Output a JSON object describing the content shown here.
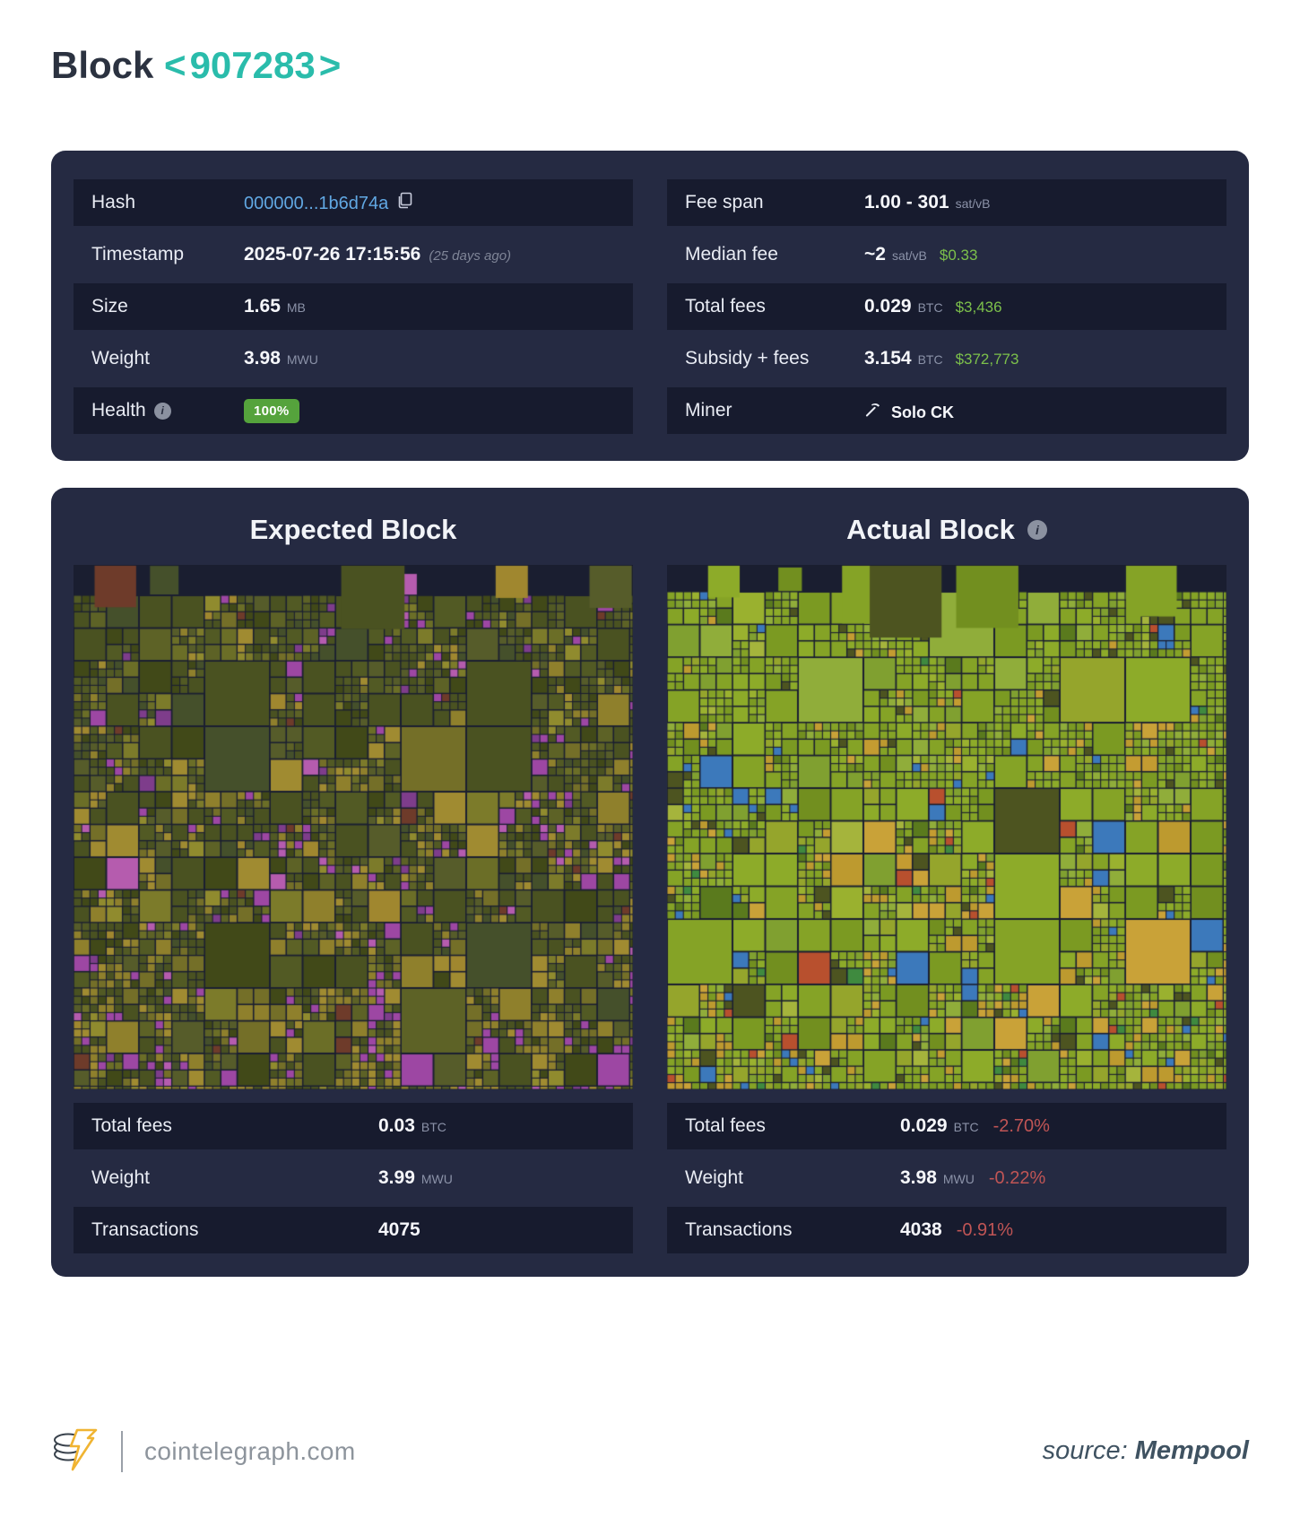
{
  "page": {
    "title": "Block",
    "prev_arrow": "<",
    "block_number": "907283",
    "next_arrow": ">"
  },
  "colors": {
    "accent_teal": "#2abcab",
    "card_background": "#252a42",
    "row_dark": "#171b2e",
    "hash_link": "#61a8e3",
    "usd_green": "#7cc04b",
    "delta_red": "#c05555",
    "badge_green": "#55a33c"
  },
  "summary": {
    "hash": {
      "label": "Hash",
      "value": "000000...1b6d74a"
    },
    "timestamp": {
      "label": "Timestamp",
      "value": "2025-07-26 17:15:56",
      "ago": "(25 days ago)"
    },
    "size": {
      "label": "Size",
      "value": "1.65",
      "unit": "MB"
    },
    "weight": {
      "label": "Weight",
      "value": "3.98",
      "unit": "MWU"
    },
    "health": {
      "label": "Health",
      "badge": "100%"
    },
    "fee_span": {
      "label": "Fee span",
      "value": "1.00 - 301",
      "unit": "sat/vB"
    },
    "median_fee": {
      "label": "Median fee",
      "value": "~2",
      "unit": "sat/vB",
      "usd": "$0.33"
    },
    "total_fees": {
      "label": "Total fees",
      "value": "0.029",
      "unit": "BTC",
      "usd": "$3,436"
    },
    "subsidy_fees": {
      "label": "Subsidy + fees",
      "value": "3.154",
      "unit": "BTC",
      "usd": "$372,773"
    },
    "miner": {
      "label": "Miner",
      "value": "Solo CK"
    }
  },
  "expected": {
    "title": "Expected Block",
    "stats": {
      "total_fees": {
        "label": "Total fees",
        "value": "0.03",
        "unit": "BTC"
      },
      "weight": {
        "label": "Weight",
        "value": "3.99",
        "unit": "MWU"
      },
      "transactions": {
        "label": "Transactions",
        "value": "4075"
      }
    }
  },
  "actual": {
    "title": "Actual Block",
    "stats": {
      "total_fees": {
        "label": "Total fees",
        "value": "0.029",
        "unit": "BTC",
        "delta": "-2.70%"
      },
      "weight": {
        "label": "Weight",
        "value": "3.98",
        "unit": "MWU",
        "delta": "-0.22%"
      },
      "transactions": {
        "label": "Transactions",
        "value": "4038",
        "delta": "-0.91%"
      }
    }
  },
  "footer": {
    "site": "cointelegraph.com",
    "source_label": "source:",
    "source_name": "Mempool"
  },
  "treemaps": {
    "expected": {
      "seed": 1337,
      "background": "#1a1e30",
      "base_cell": 146,
      "min_cell": 10,
      "top_band": 34,
      "pokes": 6,
      "p_large": 0.07,
      "p_mid": 0.15,
      "p_small": 0.3,
      "p_tiny": 0.42,
      "palette": [
        [
          "#4a5221",
          30
        ],
        [
          "#525a24",
          13
        ],
        [
          "#414918",
          12
        ],
        [
          "#565c2a",
          9
        ],
        [
          "#45502b",
          6
        ],
        [
          "#5d6226",
          7
        ],
        [
          "#6b6e27",
          6
        ],
        [
          "#7c7b2a",
          4
        ],
        [
          "#908b2e",
          3
        ],
        [
          "#9d47a3",
          3
        ],
        [
          "#7e3d8b",
          2
        ],
        [
          "#b55cae",
          1
        ],
        [
          "#a0872f",
          2
        ],
        [
          "#6e3b2a",
          1
        ]
      ],
      "accent_palette": [
        [
          "#8f802c",
          4
        ],
        [
          "#a08b31",
          3
        ],
        [
          "#746f28",
          4
        ],
        [
          "#9d47a3",
          2
        ],
        [
          "#b55cae",
          1
        ]
      ],
      "accent_bias": 0.5
    },
    "actual": {
      "seed": 4242,
      "background": "#1a1e30",
      "base_cell": 146,
      "min_cell": 10,
      "top_band": 30,
      "pokes": 7,
      "p_large": 0.09,
      "p_mid": 0.18,
      "p_small": 0.32,
      "p_tiny": 0.45,
      "palette": [
        [
          "#85a326",
          34
        ],
        [
          "#8dab29",
          16
        ],
        [
          "#7b9a22",
          12
        ],
        [
          "#90ad3a",
          7
        ],
        [
          "#80a030",
          7
        ],
        [
          "#728f1f",
          6
        ],
        [
          "#9ab12f",
          4
        ],
        [
          "#4d5420",
          5
        ],
        [
          "#3c79bb",
          2
        ],
        [
          "#c49c31",
          2
        ],
        [
          "#a5b43c",
          2
        ],
        [
          "#5a7a1d",
          2
        ]
      ],
      "accent_palette": [
        [
          "#bd9a2f",
          4
        ],
        [
          "#c9a238",
          3
        ],
        [
          "#95a52c",
          5
        ],
        [
          "#3c79bb",
          1
        ],
        [
          "#b8502e",
          1
        ],
        [
          "#3f8a3f",
          1
        ]
      ],
      "accent_bias": 0.35
    }
  }
}
